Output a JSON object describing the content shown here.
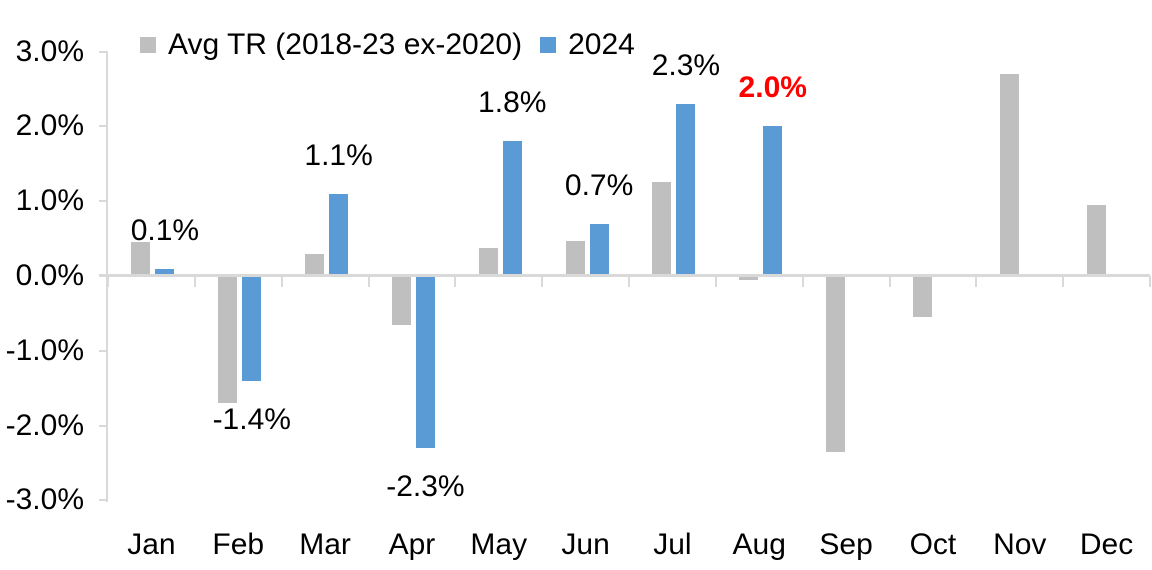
{
  "chart_data": {
    "type": "bar",
    "categories": [
      "Jan",
      "Feb",
      "Mar",
      "Apr",
      "May",
      "Jun",
      "Jul",
      "Aug",
      "Sep",
      "Oct",
      "Nov",
      "Dec"
    ],
    "series": [
      {
        "name": "Avg TR (2018-23 ex-2020)",
        "color": "#BFBFBF",
        "values": [
          0.45,
          -1.7,
          0.3,
          -0.65,
          0.38,
          0.47,
          1.25,
          -0.05,
          -2.35,
          -0.55,
          2.7,
          0.95
        ]
      },
      {
        "name": "2024",
        "color": "#5B9BD5",
        "values": [
          0.1,
          -1.4,
          1.1,
          -2.3,
          1.8,
          0.7,
          2.3,
          2.0,
          null,
          null,
          null,
          null
        ],
        "data_labels": {
          "texts": [
            "0.1%",
            "-1.4%",
            "1.1%",
            "-2.3%",
            "1.8%",
            "0.7%",
            "2.3%",
            "2.0%",
            null,
            null,
            null,
            null
          ],
          "default_color": "#000000",
          "highlight_index": 7,
          "highlight_color": "#FF0000",
          "highlight_bold": true
        }
      }
    ],
    "title": "",
    "xlabel": "",
    "ylabel": "",
    "ylim": [
      -3.0,
      3.0
    ],
    "y_axis": {
      "tick_labels": [
        "3.0%",
        "2.0%",
        "1.0%",
        "0.0%",
        "-1.0%",
        "-2.0%",
        "-3.0%"
      ],
      "tick_values": [
        3,
        2,
        1,
        0,
        -1,
        -2,
        -3
      ]
    },
    "grid": false,
    "legend_position": "top-left",
    "axis_color": "#D9D9D9",
    "text_color": "#000000"
  }
}
